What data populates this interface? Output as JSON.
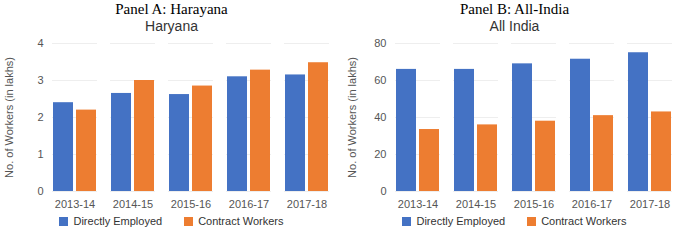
{
  "chart_data": [
    {
      "type": "bar",
      "title": "Panel A: Harayana",
      "subtitle": "Haryana",
      "y_label": "No. of Workers (in lakhs)",
      "categories": [
        "2013-14",
        "2014-15",
        "2015-16",
        "2016-17",
        "2017-18"
      ],
      "series": [
        {
          "name": "Directly Employed",
          "color": "#4472c4",
          "values": [
            2.4,
            2.65,
            2.62,
            3.1,
            3.15
          ]
        },
        {
          "name": "Contract Workers",
          "color": "#ed7d31",
          "values": [
            2.2,
            3.0,
            2.85,
            3.28,
            3.48
          ]
        }
      ],
      "ylim": [
        0,
        4
      ],
      "yticks": [
        0,
        1,
        2,
        3,
        4
      ],
      "grid": true,
      "legend": "bottom"
    },
    {
      "type": "bar",
      "title": "Panel B: All-India",
      "subtitle": "All India",
      "y_label": "No. of Workers (in lakhs)",
      "categories": [
        "2013-14",
        "2014-15",
        "2015-16",
        "2016-17",
        "2017-18"
      ],
      "series": [
        {
          "name": "Directly Employed",
          "color": "#4472c4",
          "values": [
            66,
            66,
            69,
            71.5,
            75
          ]
        },
        {
          "name": "Contract Workers",
          "color": "#ed7d31",
          "values": [
            33.5,
            36,
            38,
            41,
            43
          ]
        }
      ],
      "ylim": [
        0,
        80
      ],
      "yticks": [
        0,
        20,
        40,
        60,
        80
      ],
      "grid": true,
      "legend": "bottom"
    }
  ]
}
